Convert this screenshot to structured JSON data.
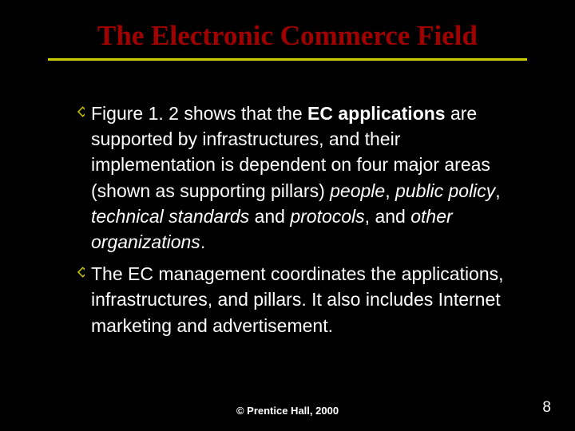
{
  "title": "The Electronic Commerce Field",
  "bullets": [
    {
      "segments": [
        {
          "text": "Figure 1. 2 shows that the ",
          "style": "normal"
        },
        {
          "text": "EC applications",
          "style": "bold"
        },
        {
          "text": " are supported by infrastructures, and their implementation is dependent on four major areas (shown as supporting pillars) ",
          "style": "normal"
        },
        {
          "text": "people",
          "style": "italic"
        },
        {
          "text": ", ",
          "style": "normal"
        },
        {
          "text": "public policy",
          "style": "italic"
        },
        {
          "text": ", ",
          "style": "normal"
        },
        {
          "text": "technical standards",
          "style": "italic"
        },
        {
          "text": " and ",
          "style": "normal"
        },
        {
          "text": "protocols",
          "style": "italic"
        },
        {
          "text": ", and ",
          "style": "normal"
        },
        {
          "text": "other organizations",
          "style": "italic"
        },
        {
          "text": ".",
          "style": "normal"
        }
      ]
    },
    {
      "segments": [
        {
          "text": "The EC management coordinates the applications, infrastructures, and pillars. It also includes Internet marketing and advertisement.",
          "style": "normal"
        }
      ]
    }
  ],
  "footer": "© Prentice Hall, 2000",
  "page_number": "8",
  "colors": {
    "background": "#000000",
    "title_color": "#a00000",
    "underline_color": "#cccc00",
    "bullet_marker_color": "#cccc00",
    "text_color": "#ffffff"
  },
  "typography": {
    "title_fontsize": 35,
    "body_fontsize": 23,
    "footer_fontsize": 13,
    "page_number_fontsize": 19
  }
}
